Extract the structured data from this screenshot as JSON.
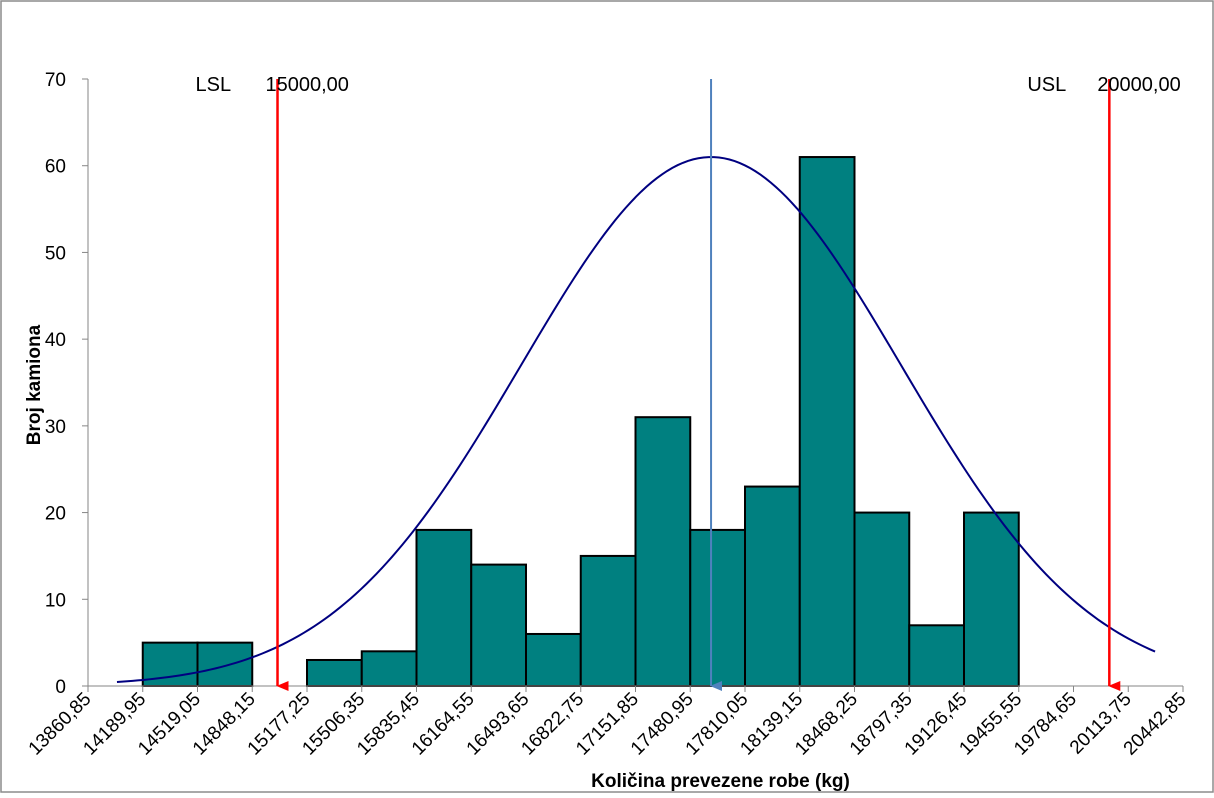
{
  "chart_data": {
    "type": "histogram",
    "x_label": "Količina prevezene robe (kg)",
    "y_label": "Broj kamiona",
    "bins": [
      14189.95,
      14519.05,
      14848.15,
      15177.25,
      15506.35,
      15835.45,
      16164.55,
      16493.65,
      16822.75,
      17151.85,
      17480.95,
      17810.05,
      18139.15,
      18468.25,
      18797.35,
      19126.45,
      19455.55
    ],
    "counts": [
      5,
      5,
      0,
      3,
      4,
      18,
      14,
      6,
      15,
      31,
      18,
      23,
      61,
      20,
      7,
      20
    ],
    "color": "#008080",
    "xlim": [
      13860.85,
      20442.85
    ],
    "xticks": [
      {
        "value": 13860.85,
        "label": "13860,85"
      },
      {
        "value": 14189.95,
        "label": "14189,95"
      },
      {
        "value": 14519.05,
        "label": "14519,05"
      },
      {
        "value": 14848.15,
        "label": "14848,15"
      },
      {
        "value": 15177.25,
        "label": "15177,25"
      },
      {
        "value": 15506.35,
        "label": "15506,35"
      },
      {
        "value": 15835.45,
        "label": "15835,45"
      },
      {
        "value": 16164.55,
        "label": "16164,55"
      },
      {
        "value": 16493.65,
        "label": "16493,65"
      },
      {
        "value": 16822.75,
        "label": "16822,75"
      },
      {
        "value": 17151.85,
        "label": "17151,85"
      },
      {
        "value": 17480.95,
        "label": "17480,95"
      },
      {
        "value": 17810.05,
        "label": "17810,05"
      },
      {
        "value": 18139.15,
        "label": "18139,15"
      },
      {
        "value": 18468.25,
        "label": "18468,25"
      },
      {
        "value": 18797.35,
        "label": "18797,35"
      },
      {
        "value": 19126.45,
        "label": "19126,45"
      },
      {
        "value": 19455.55,
        "label": "19455,55"
      },
      {
        "value": 19784.65,
        "label": "19784,65"
      },
      {
        "value": 20113.75,
        "label": "20113,75"
      },
      {
        "value": 20442.85,
        "label": "20442,85"
      }
    ],
    "ylim": [
      0,
      70
    ],
    "yticks": [
      0,
      10,
      20,
      30,
      40,
      50,
      60,
      70
    ],
    "spec_limits": [
      {
        "name": "LSL",
        "value": 15000,
        "value_label": "15000,00",
        "color": "#ff0000"
      },
      {
        "name": "USL",
        "value": 20000,
        "value_label": "20000,00",
        "color": "#ff0000"
      }
    ],
    "mean": {
      "value": 17606,
      "color": "#4f81bd"
    },
    "normal_curve": {
      "mean": 17606,
      "sd": 1142,
      "peak": 61,
      "x_range": [
        14035,
        20275
      ],
      "color": "#000080"
    }
  }
}
